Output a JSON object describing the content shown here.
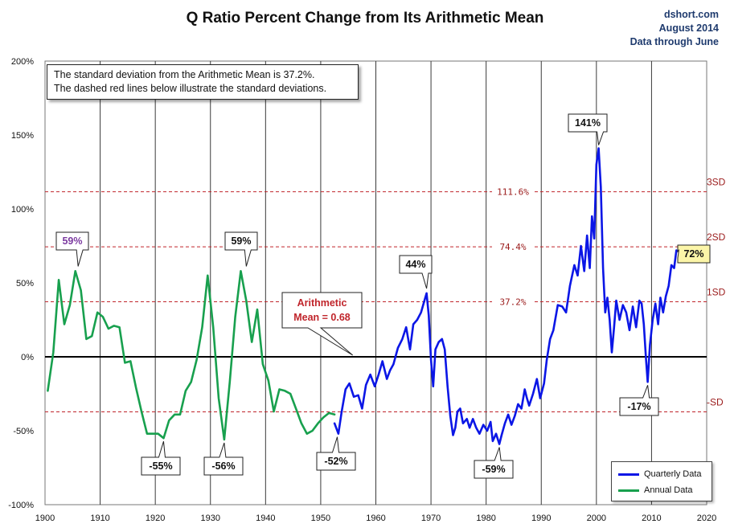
{
  "title": "Q Ratio Percent Change from Its Arithmetic Mean",
  "source": {
    "site": "dshort.com",
    "date": "August 2014",
    "note": "Data through June"
  },
  "info_box": {
    "line1": "The standard deviation from the Arithmetic Mean is 37.2%.",
    "line2": "The dashed red lines below illustrate the standard deviations."
  },
  "mean_callout": {
    "line1": "Arithmetic",
    "line2": "Mean = 0.68"
  },
  "legend": {
    "quarterly": "Quarterly Data",
    "annual": "Annual Data"
  },
  "colors": {
    "quarterly": "#0b16e6",
    "annual": "#18a04e",
    "sd_line": "#c0252b",
    "sd_label": "#9b1b1b",
    "grid": "#3a3a3a",
    "highlight": "#fbf5a8",
    "purple_label": "#7b3aa0",
    "mean_label": "#c0252b"
  },
  "chart_data": {
    "type": "line",
    "xlim": [
      1900,
      2020
    ],
    "ylim": [
      -100,
      200
    ],
    "x_ticks": [
      "1900",
      "1910",
      "1920",
      "1930",
      "1940",
      "1950",
      "1960",
      "1970",
      "1980",
      "1990",
      "2000",
      "2010",
      "2020"
    ],
    "y_ticks": [
      "-100%",
      "-50%",
      "0%",
      "50%",
      "100%",
      "150%",
      "200%"
    ],
    "y_tick_values": [
      -100,
      -50,
      0,
      50,
      100,
      150,
      200
    ],
    "grid": "vertical",
    "legend_position": "bottom-right",
    "sd_lines": [
      {
        "value": 111.6,
        "label": "111.6%",
        "side_label": "3SD"
      },
      {
        "value": 74.4,
        "label": "74.4%",
        "side_label": "2SD"
      },
      {
        "value": 37.2,
        "label": "37.2%",
        "side_label": "1SD"
      },
      {
        "value": -37.2,
        "label": "",
        "side_label": "-SD"
      }
    ],
    "mean_line": 0,
    "series": [
      {
        "name": "Annual Data",
        "x": [
          1900.5,
          1901.5,
          1902.5,
          1903.5,
          1904.5,
          1905.5,
          1906.5,
          1907.5,
          1908.5,
          1909.5,
          1910.5,
          1911.5,
          1912.5,
          1913.5,
          1914.5,
          1915.5,
          1916.5,
          1917.5,
          1918.5,
          1919.5,
          1920.5,
          1921.5,
          1922.5,
          1923.5,
          1924.5,
          1925.5,
          1926.5,
          1927.5,
          1928.5,
          1929.5,
          1930.5,
          1931.5,
          1932.5,
          1933.5,
          1934.5,
          1935.5,
          1936.5,
          1937.5,
          1938.5,
          1939.5,
          1940.5,
          1941.5,
          1942.5,
          1943.5,
          1944.5,
          1945.5,
          1946.5,
          1947.5,
          1948.5,
          1949.5,
          1950.5,
          1951.5,
          1952.5
        ],
        "values": [
          -23,
          3,
          52,
          22,
          35,
          58,
          45,
          12,
          14,
          30,
          27,
          19,
          21,
          20,
          -4,
          -3,
          -21,
          -37,
          -52,
          -52,
          -52,
          -55,
          -43,
          -39,
          -39,
          -23,
          -17,
          -2,
          20,
          55,
          20,
          -28,
          -56,
          -17,
          27,
          58,
          38,
          10,
          32,
          -5,
          -16,
          -37,
          -22,
          -23,
          -25,
          -35,
          -45,
          -52,
          -50,
          -45,
          -41,
          -38,
          -39
        ]
      },
      {
        "name": "Quarterly Data",
        "x": [
          1952.5,
          1953.2,
          1953.8,
          1954.5,
          1955.2,
          1956,
          1956.8,
          1957.5,
          1958.2,
          1959,
          1959.8,
          1960.5,
          1961.2,
          1962,
          1962.6,
          1963.2,
          1964,
          1964.8,
          1965.5,
          1966.2,
          1966.8,
          1967.5,
          1968.2,
          1968.8,
          1969.2,
          1969.6,
          1970,
          1970.4,
          1970.8,
          1971.4,
          1972,
          1972.5,
          1973,
          1973.5,
          1974,
          1974.4,
          1974.8,
          1975.3,
          1975.8,
          1976.5,
          1977,
          1977.6,
          1978.2,
          1978.8,
          1979.5,
          1980.2,
          1980.8,
          1981.2,
          1981.8,
          1982.4,
          1982.8,
          1983.4,
          1984,
          1984.6,
          1985.2,
          1985.8,
          1986.4,
          1987,
          1987.4,
          1987.8,
          1988.5,
          1989.2,
          1989.8,
          1990.5,
          1991,
          1991.6,
          1992.2,
          1993,
          1993.8,
          1994.5,
          1995.2,
          1996,
          1996.6,
          1997.2,
          1997.8,
          1998.3,
          1998.8,
          1999.2,
          1999.6,
          2000,
          2000.4,
          2000.8,
          2001.2,
          2001.6,
          2002,
          2002.4,
          2002.8,
          2003.2,
          2003.6,
          2004.2,
          2004.8,
          2005.4,
          2006,
          2006.6,
          2007.2,
          2007.8,
          2008.2,
          2008.6,
          2009,
          2009.3,
          2009.7,
          2010.2,
          2010.7,
          2011.2,
          2011.6,
          2012.1,
          2012.6,
          2013.1,
          2013.6,
          2014.1,
          2014.5
        ],
        "values": [
          -45,
          -52,
          -37,
          -22,
          -18,
          -27,
          -26,
          -35,
          -19,
          -12,
          -20,
          -12,
          -3,
          -15,
          -9,
          -5,
          6,
          12,
          20,
          5,
          22,
          25,
          30,
          38,
          43,
          28,
          -2,
          -20,
          5,
          10,
          12,
          5,
          -20,
          -40,
          -53,
          -48,
          -37,
          -35,
          -45,
          -42,
          -48,
          -42,
          -48,
          -52,
          -46,
          -50,
          -44,
          -57,
          -52,
          -59,
          -53,
          -45,
          -39,
          -46,
          -40,
          -32,
          -35,
          -22,
          -28,
          -33,
          -25,
          -15,
          -28,
          -18,
          -2,
          12,
          18,
          35,
          34,
          30,
          48,
          62,
          55,
          75,
          58,
          82,
          60,
          95,
          80,
          130,
          141,
          115,
          60,
          30,
          40,
          25,
          3,
          20,
          38,
          25,
          35,
          30,
          18,
          34,
          20,
          38,
          36,
          22,
          -2,
          -17,
          8,
          25,
          36,
          22,
          40,
          30,
          41,
          48,
          62,
          60,
          72
        ]
      }
    ],
    "annotations": [
      {
        "x": 1906,
        "y": 59,
        "label": "59%"
      },
      {
        "x": 1921.5,
        "y": -55,
        "label": "-55%"
      },
      {
        "x": 1932.5,
        "y": -56,
        "label": "-56%"
      },
      {
        "x": 1936.5,
        "y": 59,
        "label": "59%"
      },
      {
        "x": 1953,
        "y": -52,
        "label": "-52%"
      },
      {
        "x": 1969.2,
        "y": 44,
        "label": "44%"
      },
      {
        "x": 1982.4,
        "y": -59,
        "label": "-59%"
      },
      {
        "x": 2000.4,
        "y": 141,
        "label": "141%"
      },
      {
        "x": 2009.3,
        "y": -17,
        "label": "-17%"
      },
      {
        "x": 2014.5,
        "y": 72,
        "label": "72%"
      }
    ]
  }
}
